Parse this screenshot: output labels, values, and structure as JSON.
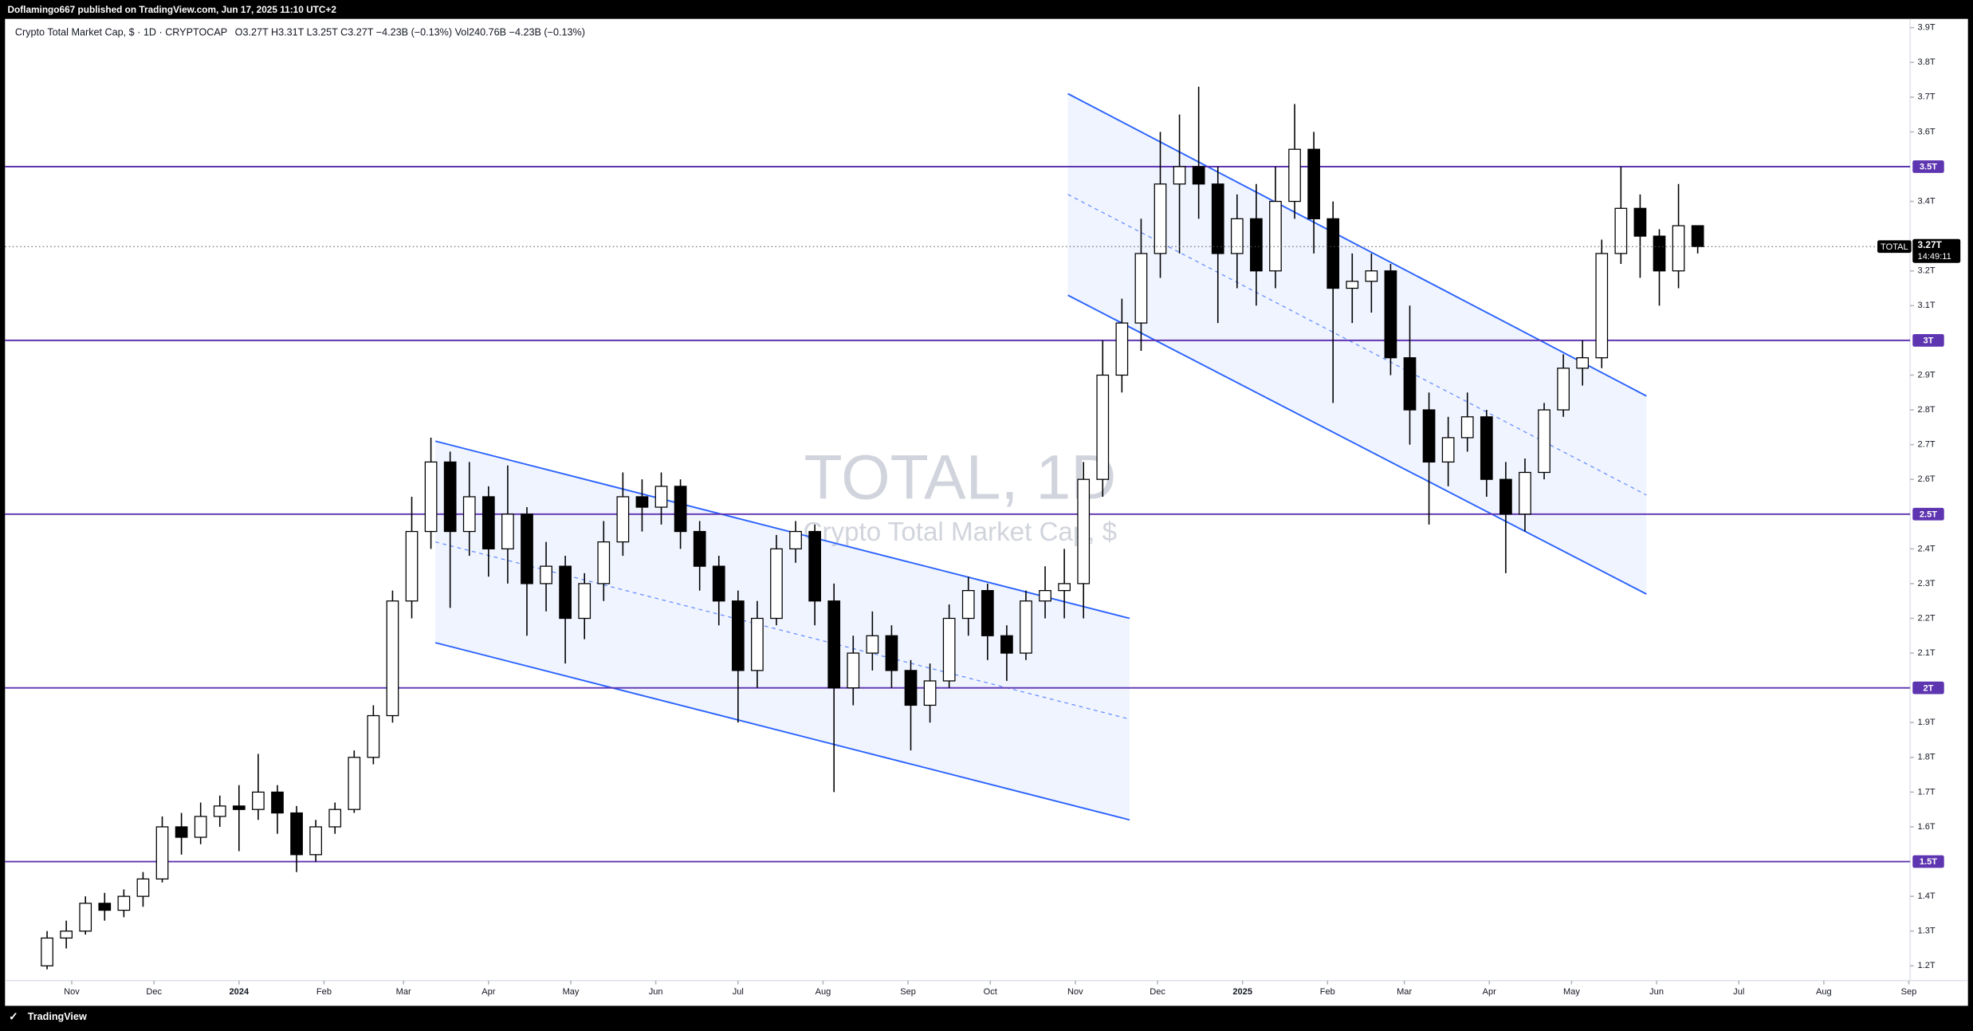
{
  "header": {
    "publisher": "Doflamingo667 published on TradingView.com, Jun 17, 2025 11:10 UTC+2"
  },
  "chart_data": {
    "type": "candlestick",
    "title": "Crypto Total Market Cap, $ · 1D · CRYPTOCAP",
    "ohlc_legend": "O3.27T  H3.31T  L3.25T  C3.27T  −4.23B (−0.13%)  Vol240.76B  −4.23B (−0.13%)",
    "watermark": "TOTAL, 1D",
    "watermark_subtitle": "Crypto Total Market Cap, $",
    "x": [
      -9,
      -2,
      5,
      12,
      19,
      26,
      33,
      40,
      47,
      54,
      61,
      68,
      75,
      82,
      89,
      96,
      103,
      110,
      117,
      124,
      131,
      138,
      145,
      152,
      159,
      166,
      173,
      180,
      187,
      194,
      201,
      208,
      215,
      222,
      229,
      236,
      243,
      250,
      257,
      264,
      271,
      278,
      285,
      292,
      299,
      306,
      313,
      320,
      327,
      334,
      341,
      348,
      355,
      362,
      369,
      376,
      383,
      390,
      397,
      404,
      411,
      418,
      425,
      432,
      439,
      446,
      453,
      460,
      467,
      474,
      481,
      488,
      495,
      502,
      509,
      516,
      523,
      530,
      537,
      544,
      551,
      558,
      565,
      572,
      579,
      586,
      593
    ],
    "open": [
      1.2,
      1.28,
      1.3,
      1.38,
      1.36,
      1.4,
      1.45,
      1.6,
      1.57,
      1.63,
      1.66,
      1.65,
      1.7,
      1.64,
      1.52,
      1.6,
      1.65,
      1.8,
      1.92,
      2.25,
      2.45,
      2.65,
      2.45,
      2.55,
      2.4,
      2.5,
      2.3,
      2.35,
      2.2,
      2.3,
      2.42,
      2.55,
      2.52,
      2.58,
      2.45,
      2.35,
      2.25,
      2.05,
      2.2,
      2.4,
      2.45,
      2.25,
      2.0,
      2.1,
      2.15,
      2.05,
      1.95,
      2.02,
      2.2,
      2.28,
      2.15,
      2.1,
      2.25,
      2.28,
      2.3,
      2.6,
      2.9,
      3.05,
      3.25,
      3.45,
      3.5,
      3.45,
      3.25,
      3.35,
      3.2,
      3.4,
      3.55,
      3.35,
      3.15,
      3.17,
      3.2,
      2.95,
      2.8,
      2.65,
      2.72,
      2.78,
      2.6,
      2.5,
      2.62,
      2.8,
      2.92,
      2.95,
      3.25,
      3.38,
      3.3,
      3.2,
      3.33
    ],
    "high": [
      1.3,
      1.33,
      1.4,
      1.41,
      1.42,
      1.47,
      1.63,
      1.64,
      1.67,
      1.69,
      1.72,
      1.81,
      1.72,
      1.66,
      1.62,
      1.67,
      1.82,
      1.95,
      2.28,
      2.55,
      2.72,
      2.68,
      2.65,
      2.58,
      2.64,
      2.52,
      2.42,
      2.38,
      2.33,
      2.48,
      2.62,
      2.6,
      2.62,
      2.6,
      2.48,
      2.38,
      2.28,
      2.25,
      2.44,
      2.48,
      2.47,
      2.3,
      2.15,
      2.22,
      2.18,
      2.08,
      2.07,
      2.24,
      2.32,
      2.3,
      2.18,
      2.28,
      2.35,
      2.4,
      2.65,
      3.0,
      3.12,
      3.35,
      3.6,
      3.65,
      3.73,
      3.5,
      3.42,
      3.45,
      3.5,
      3.68,
      3.6,
      3.4,
      3.25,
      3.25,
      3.22,
      3.1,
      2.85,
      2.78,
      2.85,
      2.8,
      2.65,
      2.66,
      2.82,
      2.96,
      3.0,
      3.29,
      3.5,
      3.42,
      3.32,
      3.45,
      3.31
    ],
    "low": [
      1.19,
      1.25,
      1.29,
      1.33,
      1.34,
      1.37,
      1.44,
      1.52,
      1.55,
      1.6,
      1.53,
      1.62,
      1.58,
      1.47,
      1.5,
      1.58,
      1.64,
      1.78,
      1.9,
      2.2,
      2.4,
      2.23,
      2.38,
      2.32,
      2.3,
      2.15,
      2.22,
      2.07,
      2.14,
      2.25,
      2.38,
      2.45,
      2.47,
      2.4,
      2.28,
      2.18,
      1.9,
      2.0,
      2.18,
      2.36,
      2.18,
      1.7,
      1.95,
      2.05,
      2.0,
      1.82,
      1.9,
      2.0,
      2.15,
      2.08,
      2.02,
      2.08,
      2.2,
      2.2,
      2.2,
      2.55,
      2.85,
      2.97,
      3.18,
      3.25,
      3.35,
      3.05,
      3.15,
      3.1,
      3.15,
      3.35,
      3.25,
      2.82,
      3.05,
      3.08,
      2.9,
      2.7,
      2.47,
      2.58,
      2.68,
      2.55,
      2.33,
      2.45,
      2.6,
      2.78,
      2.87,
      2.92,
      3.22,
      3.18,
      3.1,
      3.15,
      3.25
    ],
    "close": [
      1.28,
      1.3,
      1.38,
      1.36,
      1.4,
      1.45,
      1.6,
      1.57,
      1.63,
      1.66,
      1.65,
      1.7,
      1.64,
      1.52,
      1.6,
      1.65,
      1.8,
      1.92,
      2.25,
      2.45,
      2.65,
      2.45,
      2.55,
      2.4,
      2.5,
      2.3,
      2.35,
      2.2,
      2.3,
      2.42,
      2.55,
      2.52,
      2.58,
      2.45,
      2.35,
      2.25,
      2.05,
      2.2,
      2.4,
      2.45,
      2.25,
      2.0,
      2.1,
      2.15,
      2.05,
      1.95,
      2.02,
      2.2,
      2.28,
      2.15,
      2.1,
      2.25,
      2.28,
      2.3,
      2.6,
      2.9,
      3.05,
      3.25,
      3.45,
      3.5,
      3.45,
      3.25,
      3.35,
      3.2,
      3.4,
      3.55,
      3.35,
      3.15,
      3.17,
      3.2,
      2.95,
      2.8,
      2.65,
      2.72,
      2.78,
      2.6,
      2.5,
      2.62,
      2.8,
      2.92,
      2.95,
      3.25,
      3.38,
      3.3,
      3.2,
      3.33,
      3.27
    ],
    "up_color": "#ffffff",
    "down_color": "#000000",
    "xlim": [
      -22.5,
      670
    ],
    "xticks": [
      {
        "value": 0,
        "label": "Nov"
      },
      {
        "value": 30,
        "label": "Dec"
      },
      {
        "value": 61,
        "label": "2024"
      },
      {
        "value": 92,
        "label": "Feb"
      },
      {
        "value": 121,
        "label": "Mar"
      },
      {
        "value": 152,
        "label": "Apr"
      },
      {
        "value": 182,
        "label": "May"
      },
      {
        "value": 213,
        "label": "Jun"
      },
      {
        "value": 243,
        "label": "Jul"
      },
      {
        "value": 274,
        "label": "Aug"
      },
      {
        "value": 305,
        "label": "Sep"
      },
      {
        "value": 335,
        "label": "Oct"
      },
      {
        "value": 366,
        "label": "Nov"
      },
      {
        "value": 396,
        "label": "Dec"
      },
      {
        "value": 427,
        "label": "2025"
      },
      {
        "value": 458,
        "label": "Feb"
      },
      {
        "value": 486,
        "label": "Mar"
      },
      {
        "value": 517,
        "label": "Apr"
      },
      {
        "value": 547,
        "label": "May"
      },
      {
        "value": 578,
        "label": "Jun"
      },
      {
        "value": 608,
        "label": "Jul"
      },
      {
        "value": 639,
        "label": "Aug"
      },
      {
        "value": 670,
        "label": "Sep"
      }
    ],
    "ylim": [
      1.161,
      3.918
    ],
    "yticks": [
      {
        "value": 1.2,
        "label": "1.2T"
      },
      {
        "value": 1.3,
        "label": "1.3T"
      },
      {
        "value": 1.4,
        "label": "1.4T"
      },
      {
        "value": 1.6,
        "label": "1.6T"
      },
      {
        "value": 1.7,
        "label": "1.7T"
      },
      {
        "value": 1.8,
        "label": "1.8T"
      },
      {
        "value": 1.9,
        "label": "1.9T"
      },
      {
        "value": 2.1,
        "label": "2.1T"
      },
      {
        "value": 2.2,
        "label": "2.2T"
      },
      {
        "value": 2.3,
        "label": "2.3T"
      },
      {
        "value": 2.4,
        "label": "2.4T"
      },
      {
        "value": 2.6,
        "label": "2.6T"
      },
      {
        "value": 2.7,
        "label": "2.7T"
      },
      {
        "value": 2.8,
        "label": "2.8T"
      },
      {
        "value": 2.9,
        "label": "2.9T"
      },
      {
        "value": 3.1,
        "label": "3.1T"
      },
      {
        "value": 3.2,
        "label": "3.2T"
      },
      {
        "value": 3.4,
        "label": "3.4T"
      },
      {
        "value": 3.6,
        "label": "3.6T"
      },
      {
        "value": 3.7,
        "label": "3.7T"
      },
      {
        "value": 3.8,
        "label": "3.8T"
      },
      {
        "value": 3.9,
        "label": "3.9T"
      }
    ],
    "levels": [
      {
        "value": 1.5,
        "label": "1.5T"
      },
      {
        "value": 2,
        "label": "2T"
      },
      {
        "value": 2.5,
        "label": "2.5T"
      },
      {
        "value": 3,
        "label": "3T"
      },
      {
        "value": 3.5,
        "label": "3.5T"
      }
    ],
    "level_color": "#5e35b1",
    "channels": [
      {
        "x": [
          132.6,
          385.8
        ],
        "upper": [
          2.71,
          2.2
        ],
        "lower": [
          2.13,
          1.62
        ]
      },
      {
        "x": [
          363.3,
          574.3
        ],
        "upper": [
          3.71,
          2.84
        ],
        "lower": [
          3.13,
          2.27
        ]
      }
    ],
    "channel_color": "#2962ff",
    "last_price": {
      "value": 3.27,
      "label": "3.27T"
    },
    "symbol": "TOTAL",
    "countdown": "14:49:11"
  },
  "footer": {
    "brand": "TradingView"
  }
}
